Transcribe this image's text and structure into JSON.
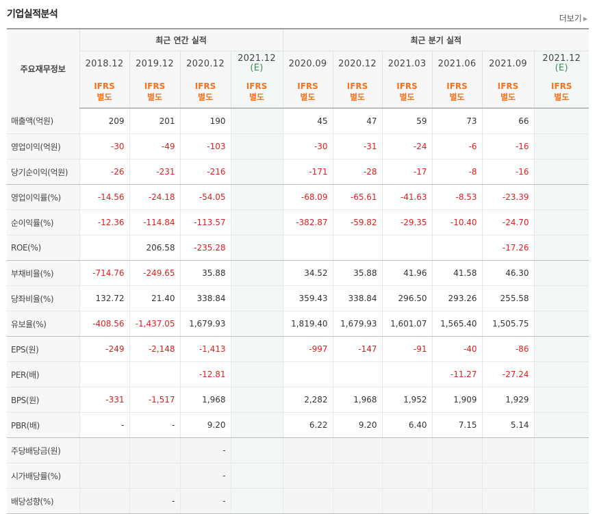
{
  "title": "기업실적분석",
  "more_label": "더보기",
  "header": {
    "label_col": "주요재무정보",
    "annual_group": "최근 연간 실적",
    "quarter_group": "최근 분기 실적",
    "annual_dates": [
      "2018.12",
      "2019.12",
      "2020.12",
      "2021.12"
    ],
    "quarter_dates": [
      "2020.09",
      "2020.12",
      "2021.03",
      "2021.06",
      "2021.09",
      "2021.12"
    ],
    "estimate_mark": "(E)",
    "ifrs_line1": "IFRS",
    "ifrs_line2": "별도"
  },
  "rows": [
    {
      "label": "매출액(억원)",
      "values": [
        "209",
        "201",
        "190",
        "",
        "45",
        "47",
        "59",
        "73",
        "66",
        ""
      ]
    },
    {
      "label": "영업이익(억원)",
      "values": [
        "-30",
        "-49",
        "-103",
        "",
        "-30",
        "-31",
        "-24",
        "-6",
        "-16",
        ""
      ]
    },
    {
      "label": "당기순이익(억원)",
      "values": [
        "-26",
        "-231",
        "-216",
        "",
        "-171",
        "-28",
        "-17",
        "-8",
        "-16",
        ""
      ]
    },
    {
      "label": "영업이익률(%)",
      "values": [
        "-14.56",
        "-24.18",
        "-54.05",
        "",
        "-68.09",
        "-65.61",
        "-41.63",
        "-8.53",
        "-23.39",
        ""
      ]
    },
    {
      "label": "순이익률(%)",
      "values": [
        "-12.36",
        "-114.84",
        "-113.57",
        "",
        "-382.87",
        "-59.82",
        "-29.35",
        "-10.40",
        "-24.70",
        ""
      ]
    },
    {
      "label": "ROE(%)",
      "values": [
        "",
        "206.58",
        "-235.28",
        "",
        "",
        "",
        "",
        "",
        "-17.26",
        ""
      ]
    },
    {
      "label": "부채비율(%)",
      "values": [
        "-714.76",
        "-249.65",
        "35.88",
        "",
        "34.52",
        "35.88",
        "41.96",
        "41.58",
        "46.30",
        ""
      ]
    },
    {
      "label": "당좌비율(%)",
      "values": [
        "132.72",
        "21.40",
        "338.84",
        "",
        "359.43",
        "338.84",
        "296.50",
        "293.26",
        "255.58",
        ""
      ]
    },
    {
      "label": "유보율(%)",
      "values": [
        "-408.56",
        "-1,437.05",
        "1,679.93",
        "",
        "1,819.40",
        "1,679.93",
        "1,601.07",
        "1,565.40",
        "1,505.75",
        ""
      ]
    },
    {
      "label": "EPS(원)",
      "values": [
        "-249",
        "-2,148",
        "-1,413",
        "",
        "-997",
        "-147",
        "-91",
        "-40",
        "-86",
        ""
      ]
    },
    {
      "label": "PER(배)",
      "values": [
        "",
        "",
        "-12.81",
        "",
        "",
        "",
        "",
        "-11.27",
        "-27.24",
        ""
      ]
    },
    {
      "label": "BPS(원)",
      "values": [
        "-331",
        "-1,517",
        "1,968",
        "",
        "2,282",
        "1,968",
        "1,952",
        "1,909",
        "1,929",
        ""
      ]
    },
    {
      "label": "PBR(배)",
      "values": [
        "-",
        "-",
        "9.20",
        "",
        "6.22",
        "9.20",
        "6.40",
        "7.15",
        "5.14",
        ""
      ]
    },
    {
      "label": "주당배당금(원)",
      "values": [
        "",
        "",
        "-",
        "",
        "",
        "",
        "",
        "",
        "",
        ""
      ]
    },
    {
      "label": "시가배당률(%)",
      "values": [
        "",
        "",
        "-",
        "",
        "",
        "",
        "",
        "",
        "",
        ""
      ]
    },
    {
      "label": "배당성향(%)",
      "values": [
        "",
        "-",
        "-",
        "",
        "",
        "",
        "",
        "",
        "",
        ""
      ]
    }
  ],
  "colors": {
    "negative": "#e01e1e",
    "ifrs": "#f47321",
    "estimate_bg": "#f3f7f6",
    "estimate_text": "#3a8f5a"
  }
}
